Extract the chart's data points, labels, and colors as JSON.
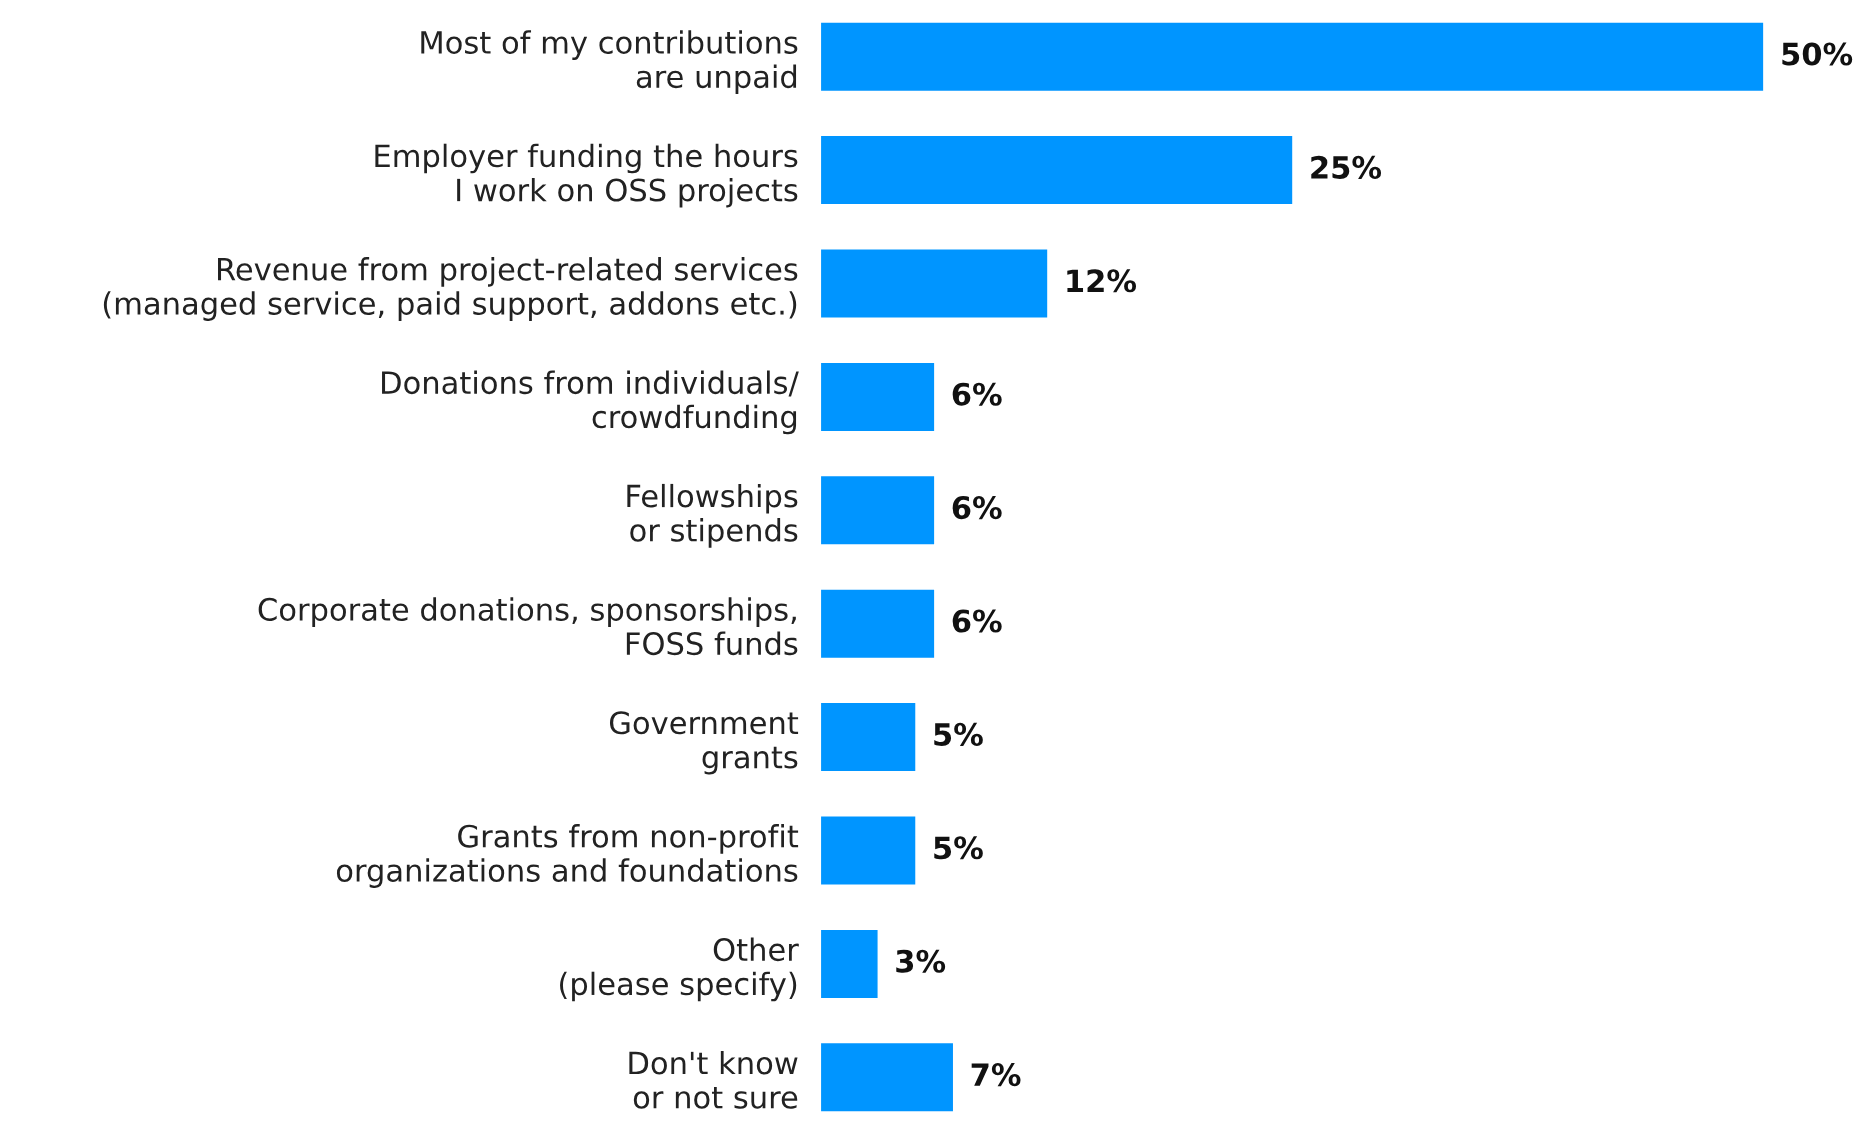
{
  "chart_data": {
    "type": "bar",
    "orientation": "horizontal",
    "categories": [
      "Most of my contributions\nare unpaid",
      "Employer funding the hours\nI work on OSS projects",
      "Revenue from project-related services\n(managed service, paid support, addons etc.)",
      "Donations from individuals/\ncrowdfunding",
      "Fellowships\nor stipends",
      "Corporate donations, sponsorships,\nFOSS funds",
      "Government\ngrants",
      "Grants from non-profit\norganizations and foundations",
      "Other\n(please specify)",
      "Don't know\nor not sure"
    ],
    "values": [
      50,
      25,
      12,
      6,
      6,
      6,
      5,
      5,
      3,
      7
    ],
    "value_labels": [
      "50%",
      "25%",
      "12%",
      "6%",
      "6%",
      "6%",
      "5%",
      "5%",
      "3%",
      "7%"
    ],
    "color": "#0095ff",
    "grid": false,
    "legend": false
  }
}
